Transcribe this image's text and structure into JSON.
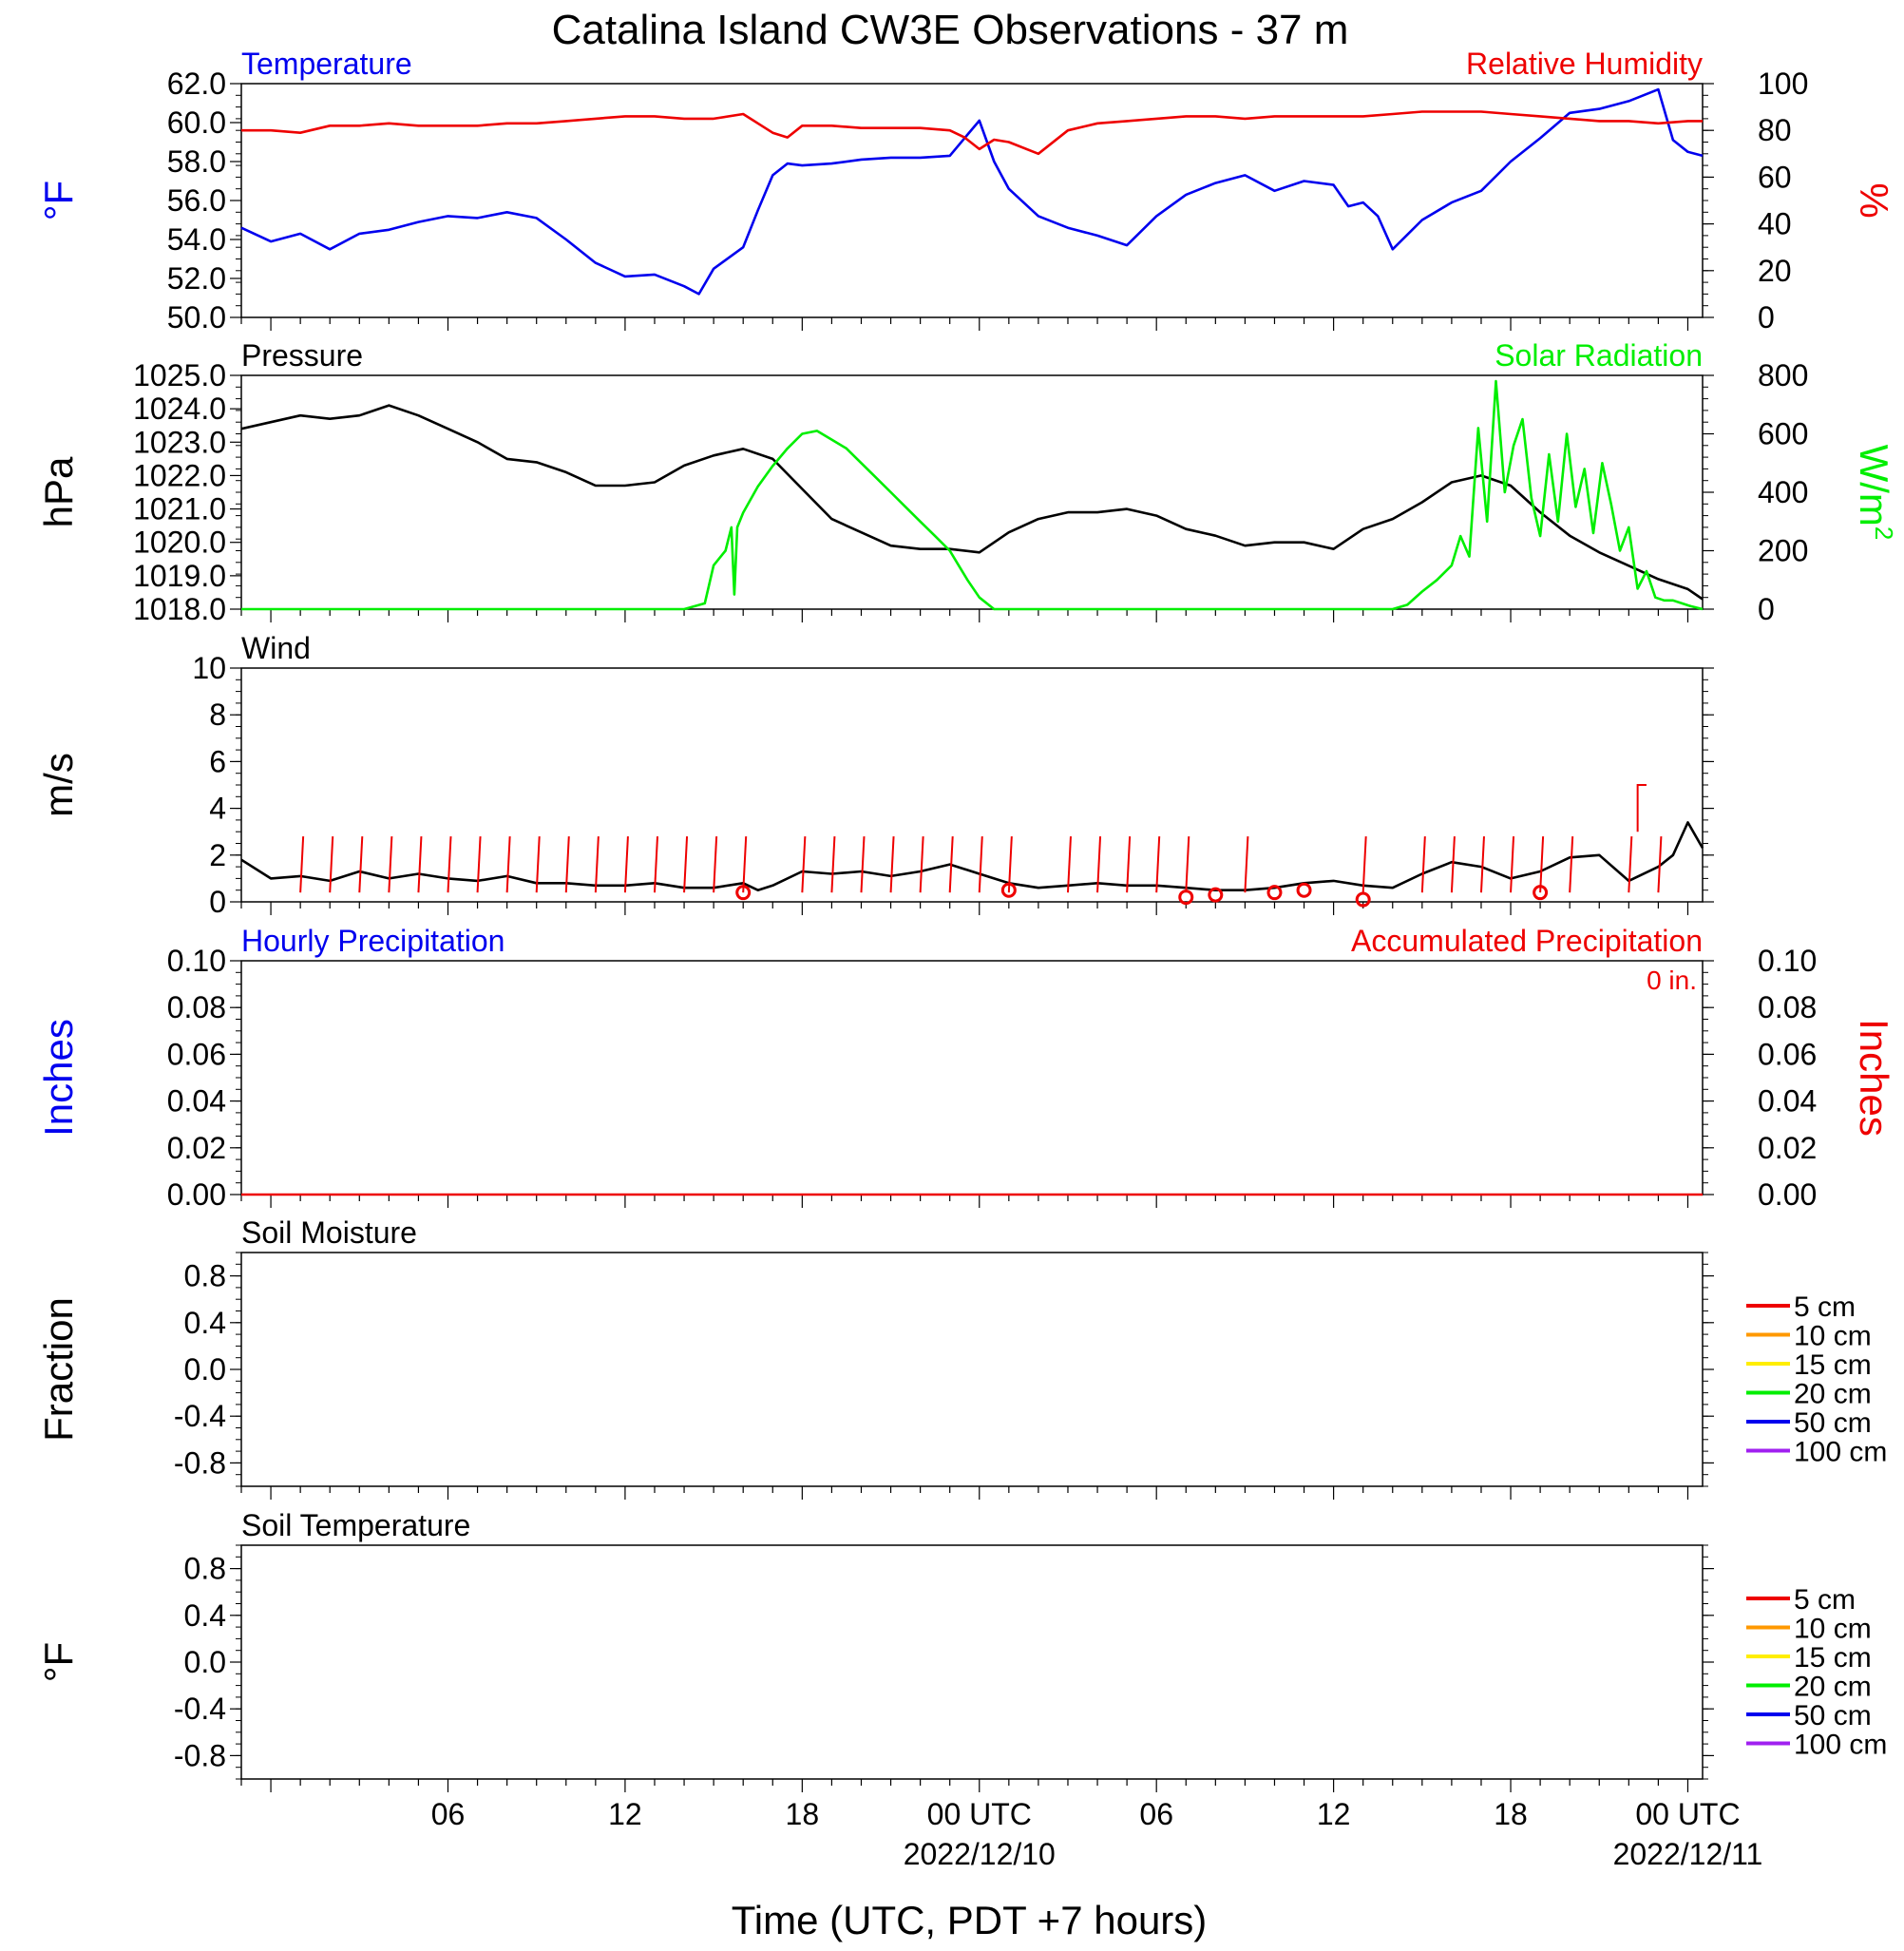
{
  "title": "Catalina Island CW3E Observations - 37 m",
  "xlabel": "Time (UTC, PDT +7 hours)",
  "x_ticks": [
    {
      "hour": 6,
      "label": "06",
      "date": ""
    },
    {
      "hour": 12,
      "label": "12",
      "date": ""
    },
    {
      "hour": 18,
      "label": "18",
      "date": ""
    },
    {
      "hour": 24,
      "label": "00 UTC",
      "date": "2022/12/10"
    },
    {
      "hour": 30,
      "label": "06",
      "date": ""
    },
    {
      "hour": 36,
      "label": "12",
      "date": ""
    },
    {
      "hour": 42,
      "label": "18",
      "date": ""
    },
    {
      "hour": 48,
      "label": "00 UTC",
      "date": "2022/12/11"
    }
  ],
  "colors": {
    "temperature": "#0000ee",
    "humidity": "#ee0000",
    "pressure": "#000000",
    "solar": "#00ee00",
    "wind_barb": "#ee0000",
    "wind": "#000000",
    "accum": "#ee0000",
    "hourly": "#0000ee"
  },
  "chart_data": [
    {
      "type": "line",
      "id": "temp_rh",
      "left_title": "Temperature",
      "right_title": "Relative Humidity",
      "ylabel": "°F",
      "y2label": "%",
      "xlim": [
        -1,
        48.5
      ],
      "ylim": [
        50,
        62
      ],
      "y_ticks": [
        "50.0",
        "52.0",
        "54.0",
        "56.0",
        "58.0",
        "60.0",
        "62.0"
      ],
      "y2lim": [
        0,
        100
      ],
      "y2_ticks": [
        "0",
        "20",
        "40",
        "60",
        "80",
        "100"
      ],
      "series": [
        {
          "axis": "left",
          "color": "#0000ee",
          "x": [
            -1,
            0,
            1,
            2,
            3,
            4,
            5,
            6,
            7,
            8,
            9,
            10,
            11,
            12,
            13,
            14,
            14.5,
            15,
            16,
            16.5,
            17,
            17.5,
            18,
            19,
            20,
            21,
            22,
            23,
            23.5,
            24,
            24.5,
            25,
            26,
            27,
            28,
            29,
            30,
            31,
            32,
            33,
            34,
            35,
            36,
            36.5,
            37,
            37.5,
            38,
            39,
            40,
            41,
            42,
            43,
            44,
            45,
            46,
            47,
            47.5,
            48,
            48.5
          ],
          "y": [
            54.6,
            53.9,
            54.3,
            53.5,
            54.3,
            54.5,
            54.9,
            55.2,
            55.1,
            55.4,
            55.1,
            54.0,
            52.8,
            52.1,
            52.2,
            51.6,
            51.2,
            52.5,
            53.6,
            55.5,
            57.3,
            57.9,
            57.8,
            57.9,
            58.1,
            58.2,
            58.2,
            58.3,
            59.2,
            60.1,
            58.0,
            56.6,
            55.2,
            54.6,
            54.2,
            53.7,
            55.2,
            56.3,
            56.9,
            57.3,
            56.5,
            57.0,
            56.8,
            55.7,
            55.9,
            55.2,
            53.5,
            55.0,
            55.9,
            56.5,
            58.0,
            59.2,
            60.5,
            60.7,
            61.1,
            61.7,
            59.1,
            58.5,
            58.3
          ]
        },
        {
          "axis": "right",
          "color": "#ee0000",
          "x": [
            -1,
            0,
            1,
            2,
            3,
            4,
            5,
            6,
            7,
            8,
            9,
            10,
            11,
            12,
            13,
            14,
            15,
            16,
            16.5,
            17,
            17.5,
            18,
            19,
            20,
            21,
            22,
            23,
            23.5,
            24,
            24.5,
            25,
            26,
            27,
            28,
            29,
            30,
            31,
            32,
            33,
            34,
            35,
            36,
            37,
            38,
            39,
            40,
            41,
            42,
            43,
            44,
            45,
            46,
            47,
            48,
            48.5
          ],
          "y": [
            80,
            80,
            79,
            82,
            82,
            83,
            82,
            82,
            82,
            83,
            83,
            84,
            85,
            86,
            86,
            85,
            85,
            87,
            83,
            79,
            77,
            82,
            82,
            81,
            81,
            81,
            80,
            77,
            72,
            76,
            75,
            70,
            80,
            83,
            84,
            85,
            86,
            86,
            85,
            86,
            86,
            86,
            86,
            87,
            88,
            88,
            88,
            87,
            86,
            85,
            84,
            84,
            83,
            84,
            84
          ]
        }
      ]
    },
    {
      "type": "line",
      "id": "pressure_solar",
      "left_title": "Pressure",
      "right_title": "Solar Radiation",
      "ylabel": "hPa",
      "y2label": "W/m",
      "y2label_sup": "2",
      "xlim": [
        -1,
        48.5
      ],
      "ylim": [
        1018,
        1025
      ],
      "y_ticks": [
        "1018.0",
        "1019.0",
        "1020.0",
        "1021.0",
        "1022.0",
        "1023.0",
        "1024.0",
        "1025.0"
      ],
      "y2lim": [
        0,
        800
      ],
      "y2_ticks": [
        "0",
        "200",
        "400",
        "600",
        "800"
      ],
      "series": [
        {
          "axis": "left",
          "color": "#000000",
          "x": [
            -1,
            0,
            1,
            2,
            3,
            4,
            5,
            6,
            7,
            8,
            9,
            10,
            11,
            12,
            13,
            14,
            15,
            16,
            17,
            18,
            19,
            20,
            21,
            22,
            23,
            24,
            25,
            26,
            27,
            28,
            29,
            30,
            31,
            32,
            33,
            34,
            35,
            36,
            37,
            38,
            39,
            40,
            41,
            42,
            43,
            44,
            45,
            46,
            47,
            48,
            48.5
          ],
          "y": [
            1023.4,
            1023.6,
            1023.8,
            1023.7,
            1023.8,
            1024.1,
            1023.8,
            1023.4,
            1023.0,
            1022.5,
            1022.4,
            1022.1,
            1021.7,
            1021.7,
            1021.8,
            1022.3,
            1022.6,
            1022.8,
            1022.5,
            1021.6,
            1020.7,
            1020.3,
            1019.9,
            1019.8,
            1019.8,
            1019.7,
            1020.3,
            1020.7,
            1020.9,
            1020.9,
            1021.0,
            1020.8,
            1020.4,
            1020.2,
            1019.9,
            1020.0,
            1020.0,
            1019.8,
            1020.4,
            1020.7,
            1021.2,
            1021.8,
            1022.0,
            1021.7,
            1020.9,
            1020.2,
            1019.7,
            1019.3,
            1018.9,
            1018.6,
            1018.3
          ]
        },
        {
          "axis": "right",
          "color": "#00ee00",
          "x": [
            -1,
            13,
            14,
            14.7,
            15,
            15.4,
            15.6,
            15.7,
            15.8,
            16,
            16.5,
            17,
            17.5,
            18,
            18.5,
            19,
            19.5,
            20,
            20.5,
            21,
            21.5,
            22,
            22.5,
            23,
            23.3,
            23.6,
            24,
            24.5,
            25,
            38,
            38.5,
            39,
            39.5,
            40,
            40.3,
            40.6,
            40.9,
            41.2,
            41.5,
            41.8,
            42.1,
            42.4,
            42.7,
            43,
            43.3,
            43.6,
            43.9,
            44.2,
            44.5,
            44.8,
            45.1,
            45.4,
            45.7,
            46,
            46.3,
            46.6,
            46.9,
            47.2,
            47.5,
            47.8,
            48.1,
            48.5
          ],
          "y": [
            0,
            0,
            0,
            20,
            150,
            200,
            280,
            50,
            280,
            330,
            420,
            490,
            550,
            600,
            610,
            580,
            550,
            500,
            450,
            400,
            350,
            300,
            250,
            200,
            150,
            100,
            40,
            0,
            0,
            0,
            15,
            60,
            100,
            150,
            250,
            180,
            620,
            300,
            780,
            400,
            560,
            650,
            380,
            250,
            530,
            300,
            600,
            350,
            480,
            260,
            500,
            360,
            200,
            280,
            70,
            130,
            40,
            30,
            30,
            20,
            10,
            0
          ]
        }
      ]
    },
    {
      "type": "line",
      "id": "wind",
      "left_title": "Wind",
      "ylabel": "m/s",
      "xlim": [
        -1,
        48.5
      ],
      "ylim": [
        0,
        10
      ],
      "y_ticks": [
        "0",
        "2",
        "4",
        "6",
        "8",
        "10"
      ],
      "series": [
        {
          "color": "#000000",
          "x": [
            -1,
            0,
            1,
            2,
            3,
            4,
            5,
            6,
            7,
            8,
            9,
            10,
            11,
            12,
            13,
            14,
            15,
            16,
            16.5,
            17,
            18,
            19,
            20,
            21,
            22,
            23,
            24,
            25,
            26,
            27,
            28,
            29,
            30,
            31,
            32,
            33,
            34,
            35,
            36,
            37,
            38,
            39,
            40,
            41,
            42,
            43,
            44,
            45,
            46,
            47,
            47.5,
            48,
            48.5
          ],
          "y": [
            1.8,
            1.0,
            1.1,
            0.9,
            1.3,
            1.0,
            1.2,
            1.0,
            0.9,
            1.1,
            0.8,
            0.8,
            0.7,
            0.7,
            0.8,
            0.6,
            0.6,
            0.8,
            0.5,
            0.7,
            1.3,
            1.2,
            1.3,
            1.1,
            1.3,
            1.6,
            1.2,
            0.8,
            0.6,
            0.7,
            0.8,
            0.7,
            0.7,
            0.6,
            0.5,
            0.5,
            0.6,
            0.8,
            0.9,
            0.7,
            0.6,
            1.2,
            1.7,
            1.5,
            1.0,
            1.3,
            1.9,
            2.0,
            0.9,
            1.5,
            2.0,
            3.4,
            2.3
          ]
        }
      ],
      "barbs_hours": [
        1,
        2,
        3,
        4,
        5,
        6,
        7,
        8,
        9,
        10,
        11,
        12,
        13,
        14,
        15,
        16,
        18,
        19,
        20,
        21,
        22,
        23,
        24,
        25,
        27,
        28,
        29,
        30,
        31,
        33,
        37,
        39,
        40,
        41,
        42,
        43,
        44,
        46,
        47
      ],
      "calm_hours": [
        16,
        25,
        31,
        32,
        34,
        35,
        37,
        43
      ],
      "calm_values": [
        0.4,
        0.5,
        0.2,
        0.3,
        0.4,
        0.5,
        0.1,
        0.4
      ]
    },
    {
      "type": "line",
      "id": "precip",
      "left_title": "Hourly Precipitation",
      "right_title": "Accumulated Precipitation",
      "annotation": "0 in.",
      "ylabel": "Inches",
      "y2label": "Inches",
      "xlim": [
        -1,
        48.5
      ],
      "ylim": [
        0,
        0.1
      ],
      "y_ticks": [
        "0.00",
        "0.02",
        "0.04",
        "0.06",
        "0.08",
        "0.10"
      ],
      "y2_ticks": [
        "0.00",
        "0.02",
        "0.04",
        "0.06",
        "0.08",
        "0.10"
      ],
      "series": [
        {
          "color": "#ee0000",
          "x": [
            -1,
            48.5
          ],
          "y": [
            0,
            0
          ]
        }
      ]
    },
    {
      "type": "line",
      "id": "soil_moisture",
      "left_title": "Soil Moisture",
      "ylabel": "Fraction",
      "xlim": [
        -1,
        48.5
      ],
      "ylim": [
        -1,
        1
      ],
      "y_ticks": [
        "-0.8",
        "-0.4",
        "0.0",
        "0.4",
        "0.8"
      ],
      "legend": [
        {
          "name": "5 cm",
          "color": "#ee0000"
        },
        {
          "name": "10 cm",
          "color": "#ff9900"
        },
        {
          "name": "15 cm",
          "color": "#ffee00"
        },
        {
          "name": "20 cm",
          "color": "#00ee00"
        },
        {
          "name": "50 cm",
          "color": "#0000ee"
        },
        {
          "name": "100 cm",
          "color": "#a020f0"
        }
      ]
    },
    {
      "type": "line",
      "id": "soil_temp",
      "left_title": "Soil Temperature",
      "ylabel": "°F",
      "xlim": [
        -1,
        48.5
      ],
      "ylim": [
        -1,
        1
      ],
      "y_ticks": [
        "-0.8",
        "-0.4",
        "0.0",
        "0.4",
        "0.8"
      ],
      "legend": [
        {
          "name": "5 cm",
          "color": "#ee0000"
        },
        {
          "name": "10 cm",
          "color": "#ff9900"
        },
        {
          "name": "15 cm",
          "color": "#ffee00"
        },
        {
          "name": "20 cm",
          "color": "#00ee00"
        },
        {
          "name": "50 cm",
          "color": "#0000ee"
        },
        {
          "name": "100 cm",
          "color": "#a020f0"
        }
      ]
    }
  ]
}
